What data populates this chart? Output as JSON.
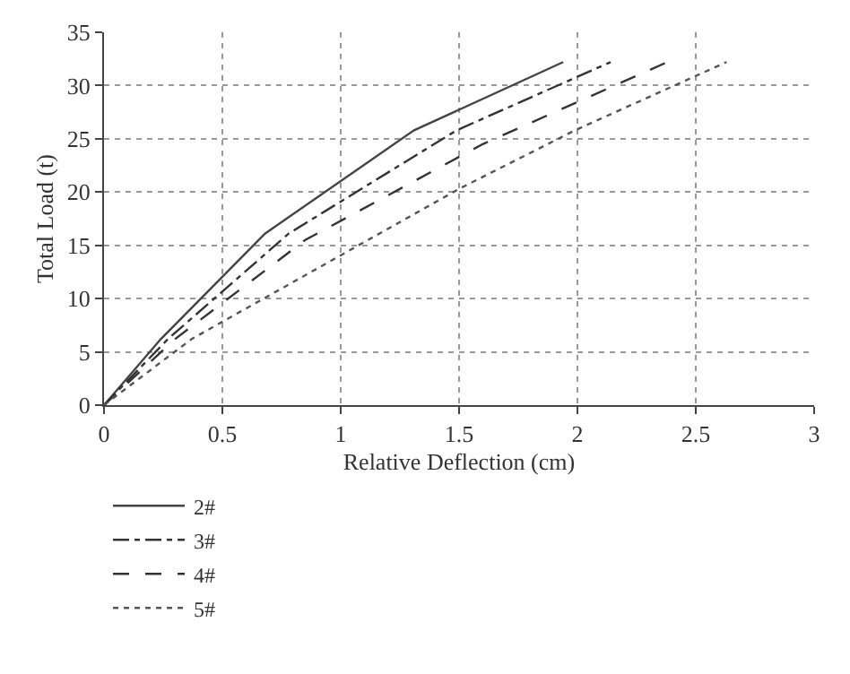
{
  "chart_data": {
    "type": "line",
    "xlabel": "Relative Deflection (cm)",
    "ylabel": "Total Load (t)",
    "xlim": [
      0,
      3
    ],
    "xticks": [
      0,
      0.5,
      1,
      1.5,
      2,
      2.5,
      3
    ],
    "ylim": [
      0,
      35
    ],
    "yticks": [
      0,
      5,
      10,
      15,
      20,
      25,
      30,
      35
    ],
    "grid": true,
    "legend": "bottom left",
    "marker": "none",
    "series": [
      {
        "name": "2#",
        "color": "#444444",
        "line_style": "solid",
        "x": [
          0,
          0.24,
          0.68,
          1.31,
          1.94
        ],
        "values": [
          0,
          6.2,
          16.1,
          25.8,
          32.2
        ]
      },
      {
        "name": "3#",
        "color": "#333333",
        "line_style": "dashdot",
        "x": [
          0,
          0.27,
          0.78,
          1.49,
          2.14
        ],
        "values": [
          0,
          6.2,
          16.1,
          25.8,
          32.2
        ]
      },
      {
        "name": "4#",
        "color": "#333333",
        "line_style": "dashed",
        "x": [
          0,
          0.3,
          0.85,
          1.6,
          2.38
        ],
        "values": [
          0,
          6.2,
          15.5,
          24.5,
          32.2
        ]
      },
      {
        "name": "5#",
        "color": "#555555",
        "line_style": "dotted",
        "x": [
          0,
          0.37,
          1.5,
          1.99,
          2.63
        ],
        "values": [
          0,
          6.2,
          20.3,
          25.8,
          32.2
        ]
      }
    ]
  }
}
